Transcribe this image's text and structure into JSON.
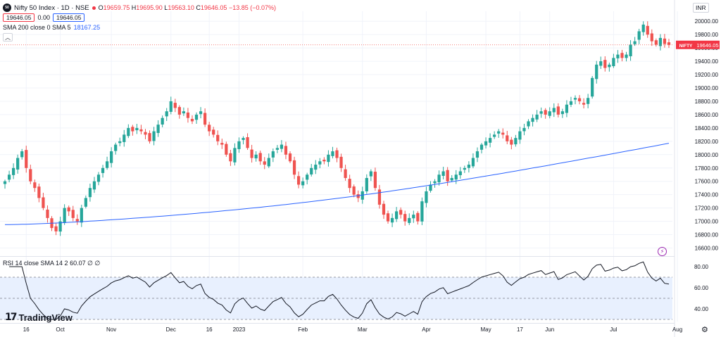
{
  "header": {
    "symbol_icon": "50",
    "symbol_title": "Nifty 50 Index · 1D · NSE",
    "ohlc": {
      "o_label": "O",
      "o_value": "19659.75",
      "h_label": "H",
      "h_value": "19695.90",
      "l_label": "L",
      "l_value": "19563.10",
      "c_label": "C",
      "c_value": "19646.05",
      "change": "−13.85 (−0.07%)"
    },
    "bid": "19646.05",
    "spread": "0.00",
    "ask": "19646.05",
    "sma_label": "SMA 200 close 0 SMA 5",
    "sma_value": "18167.25",
    "collapse_icon": "chevron-up-icon"
  },
  "currency": "INR",
  "rsi": {
    "label": "RSI 14 close SMA 14 2",
    "value": "60.07",
    "extra": "∅ ∅"
  },
  "brand": {
    "mark": "17",
    "name": "TradingView"
  },
  "colors": {
    "up": "#26a69a",
    "down": "#ef5350",
    "sma": "#2962ff",
    "rsi_line": "#131722",
    "rsi_band": "#e8f0fe",
    "grid": "#f0f3fa",
    "price_label_bg": "#f23645"
  },
  "chart_data": [
    {
      "type": "candlestick",
      "title": "Nifty 50 Index · 1D · NSE",
      "y_ticks": [
        16600,
        16800,
        17000,
        17200,
        17400,
        17600,
        17800,
        18000,
        18200,
        18400,
        18600,
        18800,
        19000,
        19200,
        19400,
        19600,
        19800,
        20000
      ],
      "y_tick_labels": [
        "16600.00",
        "16800.00",
        "17000.00",
        "17200.00",
        "17400.00",
        "17600.00",
        "17800.00",
        "18000.00",
        "18200.00",
        "18400.00",
        "18600.00",
        "18800.00",
        "19000.00",
        "19200.00",
        "19400.00",
        "19600.00",
        "19800.00",
        "20000.00"
      ],
      "ylim": [
        16500,
        20150
      ],
      "x_ticks": [
        {
          "label": "16",
          "bar": 5
        },
        {
          "label": "Oct",
          "bar": 13
        },
        {
          "label": "Nov",
          "bar": 25
        },
        {
          "label": "Dec",
          "bar": 39
        },
        {
          "label": "16",
          "bar": 48
        },
        {
          "label": "2023",
          "bar": 55
        },
        {
          "label": "Feb",
          "bar": 70
        },
        {
          "label": "Mar",
          "bar": 84
        },
        {
          "label": "Apr",
          "bar": 99
        },
        {
          "label": "May",
          "bar": 113
        },
        {
          "label": "17",
          "bar": 121
        },
        {
          "label": "Jun",
          "bar": 128
        },
        {
          "label": "Jul",
          "bar": 143
        },
        {
          "label": "Aug",
          "bar": 158
        }
      ],
      "last_price_label": "19646.05",
      "last_price_symbol": "NIFTY",
      "closes": [
        17600,
        17700,
        17800,
        17950,
        18050,
        17800,
        17600,
        17500,
        17350,
        17200,
        17050,
        16900,
        16850,
        17000,
        17200,
        17150,
        17050,
        17000,
        17200,
        17350,
        17500,
        17600,
        17700,
        17800,
        17900,
        18050,
        18150,
        18200,
        18300,
        18400,
        18350,
        18400,
        18350,
        18300,
        18200,
        18350,
        18450,
        18550,
        18650,
        18800,
        18700,
        18600,
        18650,
        18550,
        18500,
        18600,
        18650,
        18450,
        18350,
        18300,
        18200,
        18150,
        18000,
        17900,
        18100,
        18200,
        18250,
        18100,
        17950,
        18000,
        17900,
        17850,
        17950,
        18050,
        18100,
        18150,
        18000,
        17900,
        17700,
        17550,
        17600,
        17700,
        17800,
        17850,
        17900,
        17900,
        18000,
        18050,
        17950,
        17800,
        17650,
        17500,
        17400,
        17350,
        17450,
        17650,
        17750,
        17500,
        17250,
        17100,
        17000,
        17050,
        17150,
        17100,
        17000,
        17050,
        17100,
        17000,
        17300,
        17450,
        17550,
        17600,
        17700,
        17750,
        17600,
        17650,
        17700,
        17750,
        17800,
        17850,
        17950,
        18050,
        18150,
        18200,
        18250,
        18300,
        18350,
        18300,
        18200,
        18150,
        18250,
        18350,
        18400,
        18500,
        18550,
        18600,
        18650,
        18600,
        18650,
        18700,
        18600,
        18650,
        18750,
        18800,
        18850,
        18800,
        18750,
        18850,
        19150,
        19350,
        19400,
        19300,
        19350,
        19450,
        19500,
        19450,
        19500,
        19650,
        19700,
        19850,
        19950,
        19800,
        19700,
        19650,
        19750,
        19660,
        19646
      ]
    },
    {
      "type": "line",
      "title": "SMA 200 close 0 SMA 5",
      "name": "SMA 200",
      "value": 18167.25
    },
    {
      "type": "line",
      "title": "RSI 14 close SMA 14 2",
      "value": 60.07,
      "y_ticks": [
        40,
        60,
        80
      ],
      "y_tick_labels": [
        "40.00",
        "60.00",
        "80.00"
      ],
      "ylim": [
        28,
        88
      ],
      "band": [
        30,
        70
      ]
    }
  ]
}
